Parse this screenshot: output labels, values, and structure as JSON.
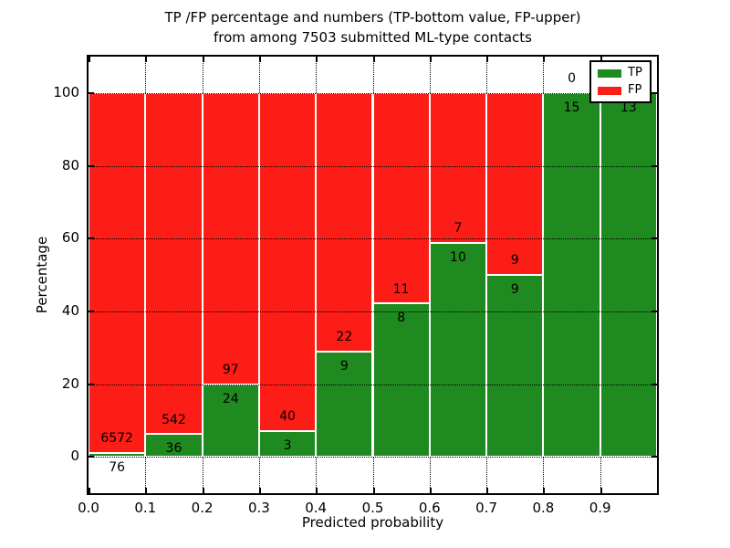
{
  "figure": {
    "title_line1": "TP /FP percentage and numbers (TP-bottom value, FP-upper)",
    "title_line2": "from among 7503 submitted ML-type contacts",
    "xlabel": "Predicted probability",
    "ylabel": "Percentage"
  },
  "colors": {
    "tp": "#1f8a1f",
    "fp": "#fb1d16",
    "bar_edge": "#ffffff",
    "grid": "#000000",
    "frame": "#000000",
    "background": "#ffffff",
    "text": "#000000"
  },
  "legend": {
    "position": "upper right",
    "items": [
      {
        "label": "TP",
        "color": "#1f8a1f"
      },
      {
        "label": "FP",
        "color": "#fb1d16"
      }
    ]
  },
  "chart_data": {
    "type": "bar",
    "stacked": true,
    "title": "TP /FP percentage and numbers (TP-bottom value, FP-upper) from among 7503 submitted ML-type contacts",
    "xlabel": "Predicted probability",
    "ylabel": "Percentage",
    "total_contacts": 7503,
    "xlim": [
      0.0,
      1.0
    ],
    "ylim": [
      -10,
      110
    ],
    "grid": true,
    "legend_position": "upper right",
    "bin_width": 0.1,
    "bin_starts": [
      0.0,
      0.1,
      0.2,
      0.3,
      0.4,
      0.5,
      0.6,
      0.7,
      0.8,
      0.9
    ],
    "xticks": [
      "0.0",
      "0.1",
      "0.2",
      "0.3",
      "0.4",
      "0.5",
      "0.6",
      "0.7",
      "0.8",
      "0.9"
    ],
    "yticks": [
      "0",
      "20",
      "40",
      "60",
      "80",
      "100"
    ],
    "series": [
      {
        "name": "TP",
        "color": "#1f8a1f",
        "counts": [
          76,
          36,
          24,
          3,
          9,
          8,
          10,
          9,
          15,
          13
        ],
        "pct": [
          1.1,
          6.2,
          19.8,
          7.0,
          29.0,
          42.1,
          58.8,
          50.0,
          100.0,
          100.0
        ]
      },
      {
        "name": "FP",
        "color": "#fb1d16",
        "counts": [
          6572,
          542,
          97,
          40,
          22,
          11,
          7,
          9,
          0,
          0
        ],
        "pct": [
          98.9,
          93.8,
          80.2,
          93.0,
          71.0,
          57.9,
          41.2,
          50.0,
          0.0,
          0.0
        ]
      }
    ]
  }
}
